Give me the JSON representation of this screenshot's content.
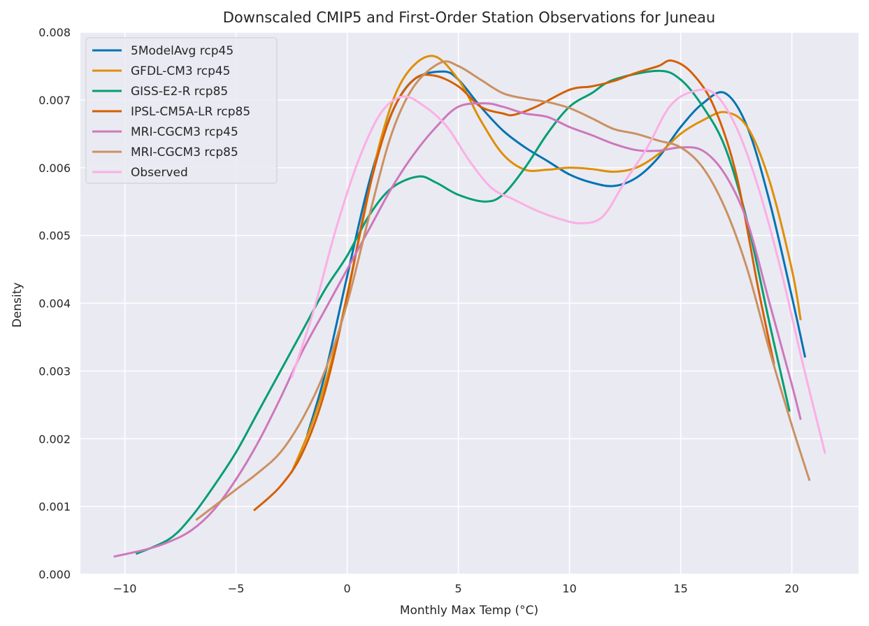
{
  "chart_data": {
    "type": "line",
    "title": "Downscaled CMIP5 and First-Order Station Observations for Juneau",
    "xlabel": "Monthly Max Temp (°C)",
    "ylabel": "Density",
    "xlim": [
      -12,
      23
    ],
    "ylim": [
      0,
      0.008
    ],
    "x_ticks": [
      -10,
      -5,
      0,
      5,
      10,
      15,
      20
    ],
    "x_tick_labels": [
      "−10",
      "−5",
      "0",
      "5",
      "10",
      "15",
      "20"
    ],
    "y_ticks": [
      0,
      0.001,
      0.002,
      0.003,
      0.004,
      0.005,
      0.006,
      0.007,
      0.008
    ],
    "y_tick_labels": [
      "0.000",
      "0.001",
      "0.002",
      "0.003",
      "0.004",
      "0.005",
      "0.006",
      "0.007",
      "0.008"
    ],
    "grid": true,
    "legend_position": "top-left",
    "background": "#eaeaf2",
    "series": [
      {
        "name": "5ModelAvg rcp45",
        "color": "#0173b2",
        "points": [
          [
            -1.8,
            0.00205
          ],
          [
            -1,
            0.00295
          ],
          [
            0,
            0.0044
          ],
          [
            1,
            0.0058
          ],
          [
            2,
            0.0068
          ],
          [
            3,
            0.0073
          ],
          [
            4.3,
            0.00742
          ],
          [
            5,
            0.0073
          ],
          [
            6,
            0.0069
          ],
          [
            7,
            0.00655
          ],
          [
            8,
            0.0063
          ],
          [
            9,
            0.0061
          ],
          [
            10,
            0.0059
          ],
          [
            11,
            0.00578
          ],
          [
            12,
            0.00573
          ],
          [
            13,
            0.00585
          ],
          [
            14,
            0.00615
          ],
          [
            15,
            0.0066
          ],
          [
            16,
            0.00695
          ],
          [
            17,
            0.0071
          ],
          [
            18,
            0.0066
          ],
          [
            19,
            0.0055
          ],
          [
            20,
            0.0041
          ],
          [
            20.6,
            0.0032
          ]
        ]
      },
      {
        "name": "GFDL-CM3 rcp45",
        "color": "#de8f05",
        "points": [
          [
            -2.5,
            0.0015
          ],
          [
            -1.5,
            0.0023
          ],
          [
            -0.5,
            0.0034
          ],
          [
            0.5,
            0.0049
          ],
          [
            1.5,
            0.0064
          ],
          [
            2.5,
            0.0073
          ],
          [
            3.8,
            0.00765
          ],
          [
            5,
            0.0073
          ],
          [
            6,
            0.0067
          ],
          [
            7,
            0.0062
          ],
          [
            8,
            0.00597
          ],
          [
            9,
            0.00597
          ],
          [
            10,
            0.006
          ],
          [
            11,
            0.00598
          ],
          [
            12,
            0.00594
          ],
          [
            13,
            0.006
          ],
          [
            14,
            0.0062
          ],
          [
            15,
            0.0065
          ],
          [
            16,
            0.0067
          ],
          [
            17,
            0.00682
          ],
          [
            18,
            0.0066
          ],
          [
            19,
            0.0058
          ],
          [
            20,
            0.0045
          ],
          [
            20.4,
            0.00375
          ]
        ]
      },
      {
        "name": "GISS-E2-R rcp85",
        "color": "#029e73",
        "points": [
          [
            -9.5,
            0.0003
          ],
          [
            -8,
            0.00052
          ],
          [
            -7,
            0.00085
          ],
          [
            -6,
            0.0013
          ],
          [
            -5,
            0.0018
          ],
          [
            -4,
            0.0024
          ],
          [
            -3,
            0.003
          ],
          [
            -2,
            0.0036
          ],
          [
            -1,
            0.0042
          ],
          [
            0,
            0.0047
          ],
          [
            1,
            0.0053
          ],
          [
            2,
            0.0057
          ],
          [
            3.2,
            0.00587
          ],
          [
            4,
            0.00578
          ],
          [
            5,
            0.0056
          ],
          [
            6.2,
            0.0055
          ],
          [
            7,
            0.0056
          ],
          [
            8,
            0.006
          ],
          [
            9,
            0.0065
          ],
          [
            10,
            0.0069
          ],
          [
            11,
            0.0071
          ],
          [
            12,
            0.0073
          ],
          [
            14,
            0.00743
          ],
          [
            15,
            0.0073
          ],
          [
            16,
            0.0069
          ],
          [
            17,
            0.0063
          ],
          [
            18,
            0.0052
          ],
          [
            19,
            0.0037
          ],
          [
            19.9,
            0.0024
          ]
        ]
      },
      {
        "name": "IPSL-CM5A-LR rcp85",
        "color": "#d55e00",
        "points": [
          [
            -4.2,
            0.00094
          ],
          [
            -3,
            0.0013
          ],
          [
            -2,
            0.0018
          ],
          [
            -1,
            0.0027
          ],
          [
            0,
            0.0041
          ],
          [
            1,
            0.0057
          ],
          [
            2,
            0.0068
          ],
          [
            3,
            0.0073
          ],
          [
            3.9,
            0.00736
          ],
          [
            5,
            0.0072
          ],
          [
            6,
            0.0069
          ],
          [
            7,
            0.0068
          ],
          [
            7.5,
            0.00678
          ],
          [
            8.5,
            0.0069
          ],
          [
            10,
            0.00715
          ],
          [
            11,
            0.0072
          ],
          [
            12,
            0.00728
          ],
          [
            13,
            0.0074
          ],
          [
            14,
            0.0075
          ],
          [
            14.6,
            0.00758
          ],
          [
            15.5,
            0.0074
          ],
          [
            16.5,
            0.0069
          ],
          [
            17.5,
            0.0059
          ],
          [
            18.5,
            0.0042
          ],
          [
            19.2,
            0.0031
          ]
        ]
      },
      {
        "name": "MRI-CGCM3 rcp45",
        "color": "#cc78bc",
        "points": [
          [
            -10.5,
            0.00026
          ],
          [
            -9,
            0.00037
          ],
          [
            -8,
            0.00048
          ],
          [
            -7,
            0.00065
          ],
          [
            -6,
            0.00095
          ],
          [
            -5,
            0.0014
          ],
          [
            -4,
            0.00195
          ],
          [
            -3,
            0.0026
          ],
          [
            -2,
            0.0033
          ],
          [
            -1,
            0.0039
          ],
          [
            0,
            0.0045
          ],
          [
            1,
            0.0051
          ],
          [
            2,
            0.0057
          ],
          [
            3,
            0.0062
          ],
          [
            4,
            0.0066
          ],
          [
            5,
            0.0069
          ],
          [
            6.2,
            0.00695
          ],
          [
            7,
            0.0069
          ],
          [
            8,
            0.0068
          ],
          [
            9,
            0.00675
          ],
          [
            10,
            0.0066
          ],
          [
            11,
            0.00648
          ],
          [
            12,
            0.00635
          ],
          [
            13,
            0.00626
          ],
          [
            14,
            0.00625
          ],
          [
            15,
            0.0063
          ],
          [
            16,
            0.00625
          ],
          [
            17,
            0.0059
          ],
          [
            18,
            0.0052
          ],
          [
            19,
            0.004
          ],
          [
            20,
            0.0028
          ],
          [
            20.4,
            0.00228
          ]
        ]
      },
      {
        "name": "MRI-CGCM3 rcp85",
        "color": "#ca9161",
        "points": [
          [
            -6.8,
            0.0008
          ],
          [
            -6,
            0.001
          ],
          [
            -5,
            0.00125
          ],
          [
            -4,
            0.0015
          ],
          [
            -3,
            0.0018
          ],
          [
            -2,
            0.0023
          ],
          [
            -1,
            0.003
          ],
          [
            0,
            0.004
          ],
          [
            1,
            0.0053
          ],
          [
            2,
            0.0065
          ],
          [
            3,
            0.0072
          ],
          [
            4.2,
            0.00755
          ],
          [
            5,
            0.0075
          ],
          [
            6,
            0.0073
          ],
          [
            7,
            0.0071
          ],
          [
            8,
            0.00702
          ],
          [
            9,
            0.00697
          ],
          [
            10,
            0.00688
          ],
          [
            11,
            0.00673
          ],
          [
            12,
            0.00657
          ],
          [
            13,
            0.0065
          ],
          [
            14,
            0.0064
          ],
          [
            15,
            0.0063
          ],
          [
            16,
            0.006
          ],
          [
            17,
            0.0054
          ],
          [
            18,
            0.0045
          ],
          [
            19,
            0.0033
          ],
          [
            20,
            0.0022
          ],
          [
            20.8,
            0.00138
          ]
        ]
      },
      {
        "name": "Observed",
        "color": "#fbafe4",
        "points": [
          [
            -2.5,
            0.0029
          ],
          [
            -1.5,
            0.0039
          ],
          [
            -0.5,
            0.0051
          ],
          [
            0.5,
            0.0061
          ],
          [
            1.5,
            0.0068
          ],
          [
            2.5,
            0.00705
          ],
          [
            3.5,
            0.0069
          ],
          [
            4.5,
            0.0066
          ],
          [
            5.5,
            0.0061
          ],
          [
            6.5,
            0.0057
          ],
          [
            7.5,
            0.00553
          ],
          [
            8.5,
            0.00537
          ],
          [
            9.5,
            0.00525
          ],
          [
            10.5,
            0.00518
          ],
          [
            11.5,
            0.00528
          ],
          [
            12.5,
            0.0058
          ],
          [
            13.5,
            0.0063
          ],
          [
            14.5,
            0.0069
          ],
          [
            15.5,
            0.00712
          ],
          [
            16.5,
            0.0071
          ],
          [
            17.5,
            0.0066
          ],
          [
            18.5,
            0.0057
          ],
          [
            19.5,
            0.0045
          ],
          [
            20.5,
            0.0031
          ],
          [
            21.5,
            0.00178
          ]
        ]
      }
    ]
  }
}
